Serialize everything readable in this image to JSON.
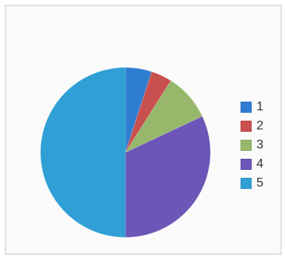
{
  "chart_data": {
    "type": "pie",
    "title": "",
    "categories": [
      "1",
      "2",
      "3",
      "4",
      "5"
    ],
    "values": [
      5,
      4,
      9,
      32,
      50
    ],
    "colors": [
      "#2f7dd1",
      "#c8504f",
      "#97b86b",
      "#6c56b7",
      "#2f9fd5"
    ],
    "legend_position": "right",
    "start_angle_deg": 0
  }
}
